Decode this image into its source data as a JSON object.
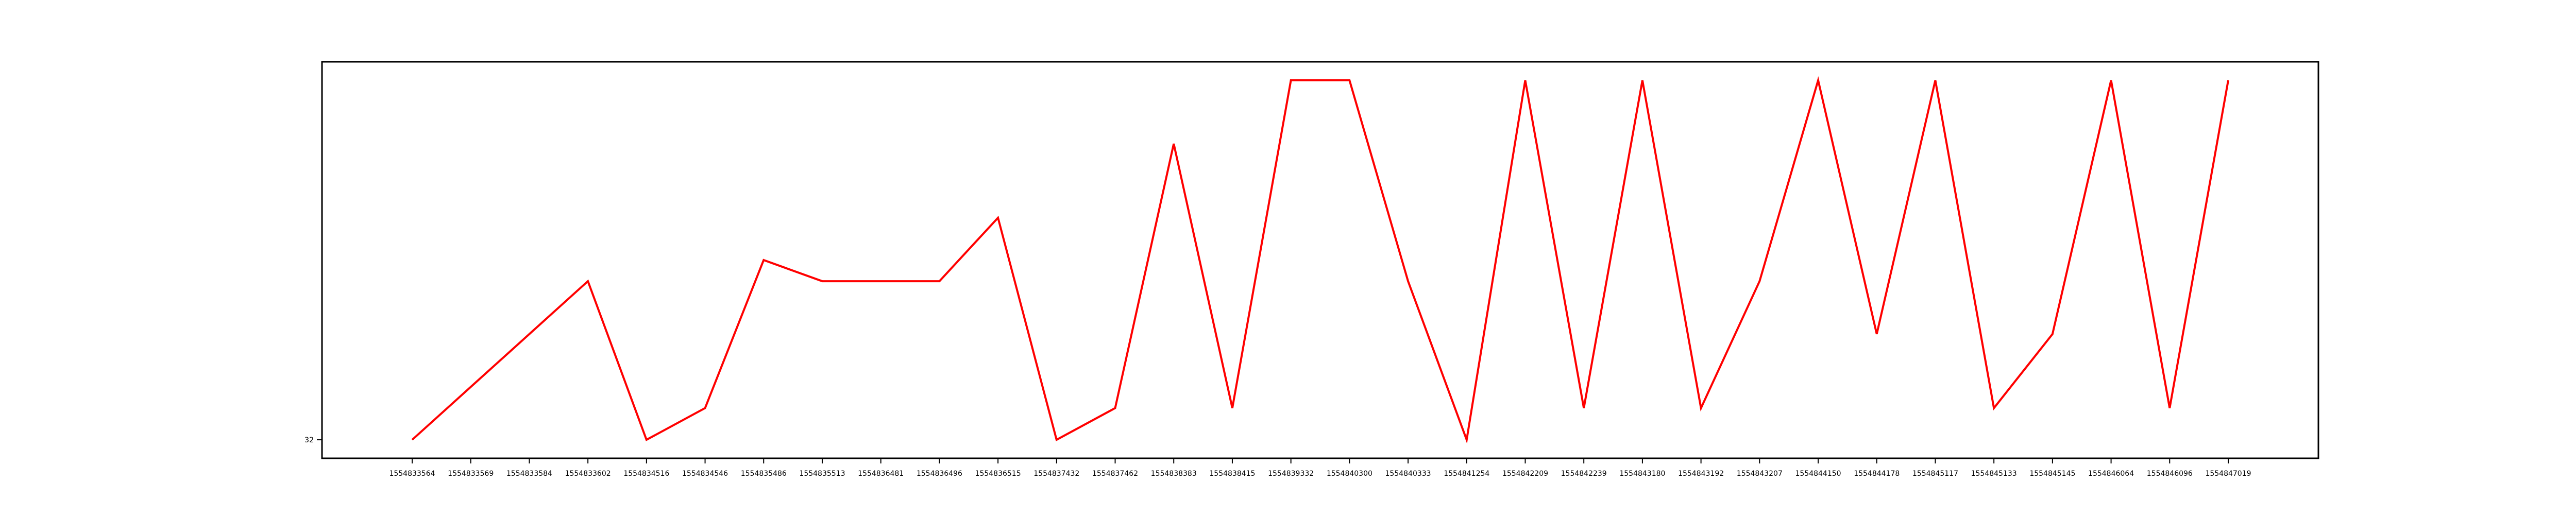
{
  "chart_data": {
    "type": "line",
    "title": "",
    "xlabel": "",
    "ylabel": "",
    "x": [
      "1554833564",
      "1554833569",
      "1554833584",
      "1554833602",
      "1554834516",
      "1554834546",
      "1554835486",
      "1554835513",
      "1554836481",
      "1554836496",
      "1554836515",
      "1554837432",
      "1554837462",
      "1554838383",
      "1554838415",
      "1554839332",
      "1554840300",
      "1554840333",
      "1554841254",
      "1554842209",
      "1554842239",
      "1554843180",
      "1554843192",
      "1554843207",
      "1554844150",
      "1554844178",
      "1554845117",
      "1554845133",
      "1554845145",
      "1554846064",
      "1554846096",
      "1554847019"
    ],
    "series": [
      {
        "color": "#ff0000",
        "values": [
          32,
          33,
          34,
          35,
          32,
          32.6,
          35.4,
          35,
          35,
          35,
          36.2,
          32,
          32.6,
          37.6,
          32.6,
          38.8,
          38.8,
          35,
          32,
          38.8,
          32.6,
          38.8,
          32.6,
          35,
          38.8,
          34,
          38.8,
          32.6,
          34,
          38.8,
          32.6,
          38.8
        ]
      }
    ],
    "yticks": [
      "32"
    ],
    "ylim": [
      31.65,
      39.15
    ],
    "grid": false,
    "legend": "none"
  }
}
